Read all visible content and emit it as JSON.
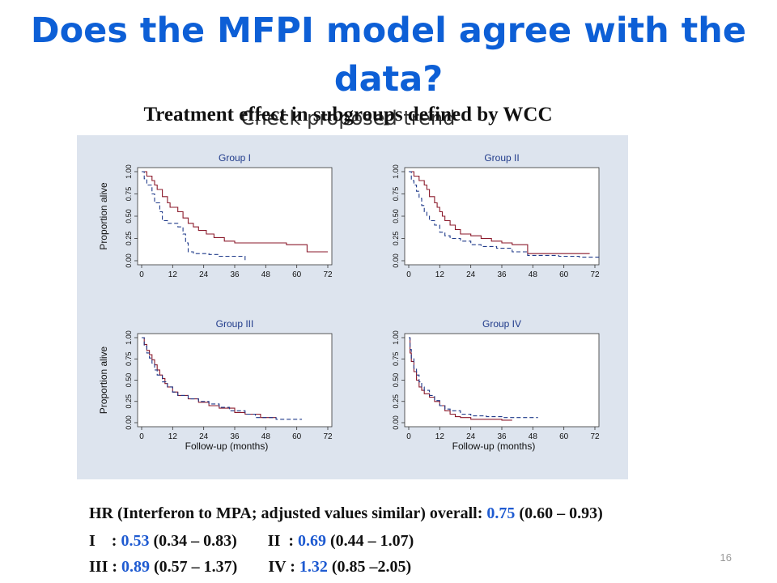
{
  "slide": {
    "title": "Does the MFPI model agree with the data?",
    "subtitle": "Treatment effect in subgroups defined by WCC",
    "overlay_text": "Check proposed trend",
    "page_number": "16"
  },
  "colors": {
    "title": "#0d5fd6",
    "value": "#1f5bd1",
    "mpa": "#1f3a8a",
    "ifn": "#8b1a2b",
    "panel_bg": "#dde4ee"
  },
  "stats": {
    "line1": {
      "label": "HR (Interferon to MPA; adjusted values similar) ",
      "label2": "overall: ",
      "value": "0.75",
      "ci": " (0.60 – 0.93)"
    },
    "line2": [
      {
        "label": "I    : ",
        "value": "0.53",
        "ci": " (0.34 – 0.83)"
      },
      {
        "label": "II  : ",
        "value": "0.69",
        "ci": " (0.44 – 1.07)"
      }
    ],
    "line3": [
      {
        "label": "III : ",
        "value": "0.89",
        "ci": " (0.57 – 1.37)"
      },
      {
        "label": "IV : ",
        "value": "1.32",
        "ci": " (0.85 –2.05)"
      }
    ]
  },
  "chart_data": {
    "type": "line",
    "ylabel": "Proportion alive",
    "xlabel": "Follow-up (months)",
    "x_ticks": [
      "0",
      "12",
      "24",
      "36",
      "48",
      "60",
      "72"
    ],
    "y_ticks": [
      "0.00",
      "0.25",
      "0.50",
      "0.75",
      "1.00"
    ],
    "xlim": [
      0,
      72
    ],
    "ylim": [
      0,
      1
    ],
    "panels": [
      {
        "title": "Group I",
        "series": [
          {
            "style": "solid",
            "color": "#8b1a2b",
            "steps": [
              [
                0,
                1
              ],
              [
                2,
                0.95
              ],
              [
                4,
                0.9
              ],
              [
                5,
                0.85
              ],
              [
                6,
                0.8
              ],
              [
                8,
                0.72
              ],
              [
                10,
                0.65
              ],
              [
                11,
                0.6
              ],
              [
                14,
                0.55
              ],
              [
                16,
                0.48
              ],
              [
                18,
                0.42
              ],
              [
                20,
                0.38
              ],
              [
                22,
                0.34
              ],
              [
                25,
                0.3
              ],
              [
                28,
                0.26
              ],
              [
                32,
                0.22
              ],
              [
                36,
                0.2
              ],
              [
                44,
                0.2
              ],
              [
                56,
                0.18
              ],
              [
                64,
                0.1
              ],
              [
                72,
                0.1
              ]
            ]
          },
          {
            "style": "dashed",
            "color": "#1f3a8a",
            "steps": [
              [
                0,
                1
              ],
              [
                1,
                0.92
              ],
              [
                2,
                0.85
              ],
              [
                4,
                0.75
              ],
              [
                5,
                0.65
              ],
              [
                7,
                0.55
              ],
              [
                8,
                0.45
              ],
              [
                10,
                0.42
              ],
              [
                14,
                0.38
              ],
              [
                16,
                0.3
              ],
              [
                17,
                0.2
              ],
              [
                18,
                0.1
              ],
              [
                20,
                0.08
              ],
              [
                26,
                0.07
              ],
              [
                30,
                0.05
              ],
              [
                36,
                0.05
              ],
              [
                40,
                0
              ]
            ]
          }
        ]
      },
      {
        "title": "Group II",
        "series": [
          {
            "style": "solid",
            "color": "#8b1a2b",
            "steps": [
              [
                0,
                1
              ],
              [
                2,
                0.95
              ],
              [
                4,
                0.9
              ],
              [
                6,
                0.85
              ],
              [
                7,
                0.8
              ],
              [
                8,
                0.72
              ],
              [
                10,
                0.65
              ],
              [
                11,
                0.6
              ],
              [
                12,
                0.55
              ],
              [
                13,
                0.5
              ],
              [
                14,
                0.45
              ],
              [
                16,
                0.4
              ],
              [
                18,
                0.35
              ],
              [
                20,
                0.3
              ],
              [
                24,
                0.28
              ],
              [
                28,
                0.25
              ],
              [
                32,
                0.22
              ],
              [
                36,
                0.2
              ],
              [
                40,
                0.18
              ],
              [
                46,
                0.08
              ],
              [
                62,
                0.08
              ],
              [
                70,
                0.08
              ]
            ]
          },
          {
            "style": "dashed",
            "color": "#1f3a8a",
            "steps": [
              [
                0,
                1
              ],
              [
                1,
                0.9
              ],
              [
                2,
                0.85
              ],
              [
                3,
                0.78
              ],
              [
                4,
                0.7
              ],
              [
                5,
                0.62
              ],
              [
                6,
                0.55
              ],
              [
                7,
                0.5
              ],
              [
                8,
                0.45
              ],
              [
                10,
                0.4
              ],
              [
                12,
                0.32
              ],
              [
                14,
                0.28
              ],
              [
                16,
                0.25
              ],
              [
                20,
                0.22
              ],
              [
                24,
                0.18
              ],
              [
                28,
                0.16
              ],
              [
                34,
                0.14
              ],
              [
                40,
                0.1
              ],
              [
                46,
                0.06
              ],
              [
                58,
                0.05
              ],
              [
                66,
                0.04
              ],
              [
                74,
                0.04
              ]
            ]
          }
        ]
      },
      {
        "title": "Group III",
        "series": [
          {
            "style": "solid",
            "color": "#8b1a2b",
            "steps": [
              [
                0,
                1
              ],
              [
                1,
                0.92
              ],
              [
                2,
                0.85
              ],
              [
                3,
                0.8
              ],
              [
                4,
                0.74
              ],
              [
                5,
                0.68
              ],
              [
                6,
                0.62
              ],
              [
                7,
                0.56
              ],
              [
                8,
                0.52
              ],
              [
                9,
                0.46
              ],
              [
                10,
                0.42
              ],
              [
                12,
                0.36
              ],
              [
                14,
                0.32
              ],
              [
                18,
                0.28
              ],
              [
                22,
                0.24
              ],
              [
                26,
                0.2
              ],
              [
                30,
                0.17
              ],
              [
                36,
                0.12
              ],
              [
                40,
                0.1
              ],
              [
                46,
                0.06
              ],
              [
                52,
                0.06
              ]
            ]
          },
          {
            "style": "dashed",
            "color": "#1f3a8a",
            "steps": [
              [
                0,
                1
              ],
              [
                1,
                0.9
              ],
              [
                2,
                0.82
              ],
              [
                3,
                0.76
              ],
              [
                4,
                0.7
              ],
              [
                5,
                0.62
              ],
              [
                6,
                0.56
              ],
              [
                8,
                0.48
              ],
              [
                10,
                0.42
              ],
              [
                12,
                0.36
              ],
              [
                14,
                0.32
              ],
              [
                18,
                0.28
              ],
              [
                22,
                0.25
              ],
              [
                26,
                0.22
              ],
              [
                30,
                0.18
              ],
              [
                34,
                0.14
              ],
              [
                40,
                0.1
              ],
              [
                44,
                0.06
              ],
              [
                52,
                0.04
              ],
              [
                62,
                0.04
              ]
            ]
          }
        ]
      },
      {
        "title": "Group IV",
        "series": [
          {
            "style": "solid",
            "color": "#8b1a2b",
            "steps": [
              [
                0,
                1
              ],
              [
                0.5,
                0.82
              ],
              [
                1,
                0.72
              ],
              [
                2,
                0.6
              ],
              [
                3,
                0.5
              ],
              [
                4,
                0.42
              ],
              [
                5,
                0.38
              ],
              [
                6,
                0.34
              ],
              [
                8,
                0.3
              ],
              [
                10,
                0.25
              ],
              [
                12,
                0.2
              ],
              [
                14,
                0.14
              ],
              [
                16,
                0.1
              ],
              [
                18,
                0.07
              ],
              [
                20,
                0.06
              ],
              [
                24,
                0.04
              ],
              [
                30,
                0.04
              ],
              [
                36,
                0.03
              ],
              [
                40,
                0.03
              ]
            ]
          },
          {
            "style": "dashed",
            "color": "#1f3a8a",
            "steps": [
              [
                0,
                1
              ],
              [
                0.5,
                0.86
              ],
              [
                1,
                0.76
              ],
              [
                2,
                0.64
              ],
              [
                3,
                0.56
              ],
              [
                4,
                0.48
              ],
              [
                5,
                0.42
              ],
              [
                6,
                0.38
              ],
              [
                8,
                0.32
              ],
              [
                10,
                0.26
              ],
              [
                12,
                0.2
              ],
              [
                14,
                0.16
              ],
              [
                16,
                0.14
              ],
              [
                20,
                0.1
              ],
              [
                24,
                0.08
              ],
              [
                30,
                0.07
              ],
              [
                36,
                0.06
              ],
              [
                44,
                0.06
              ],
              [
                50,
                0.06
              ]
            ]
          }
        ]
      }
    ]
  }
}
